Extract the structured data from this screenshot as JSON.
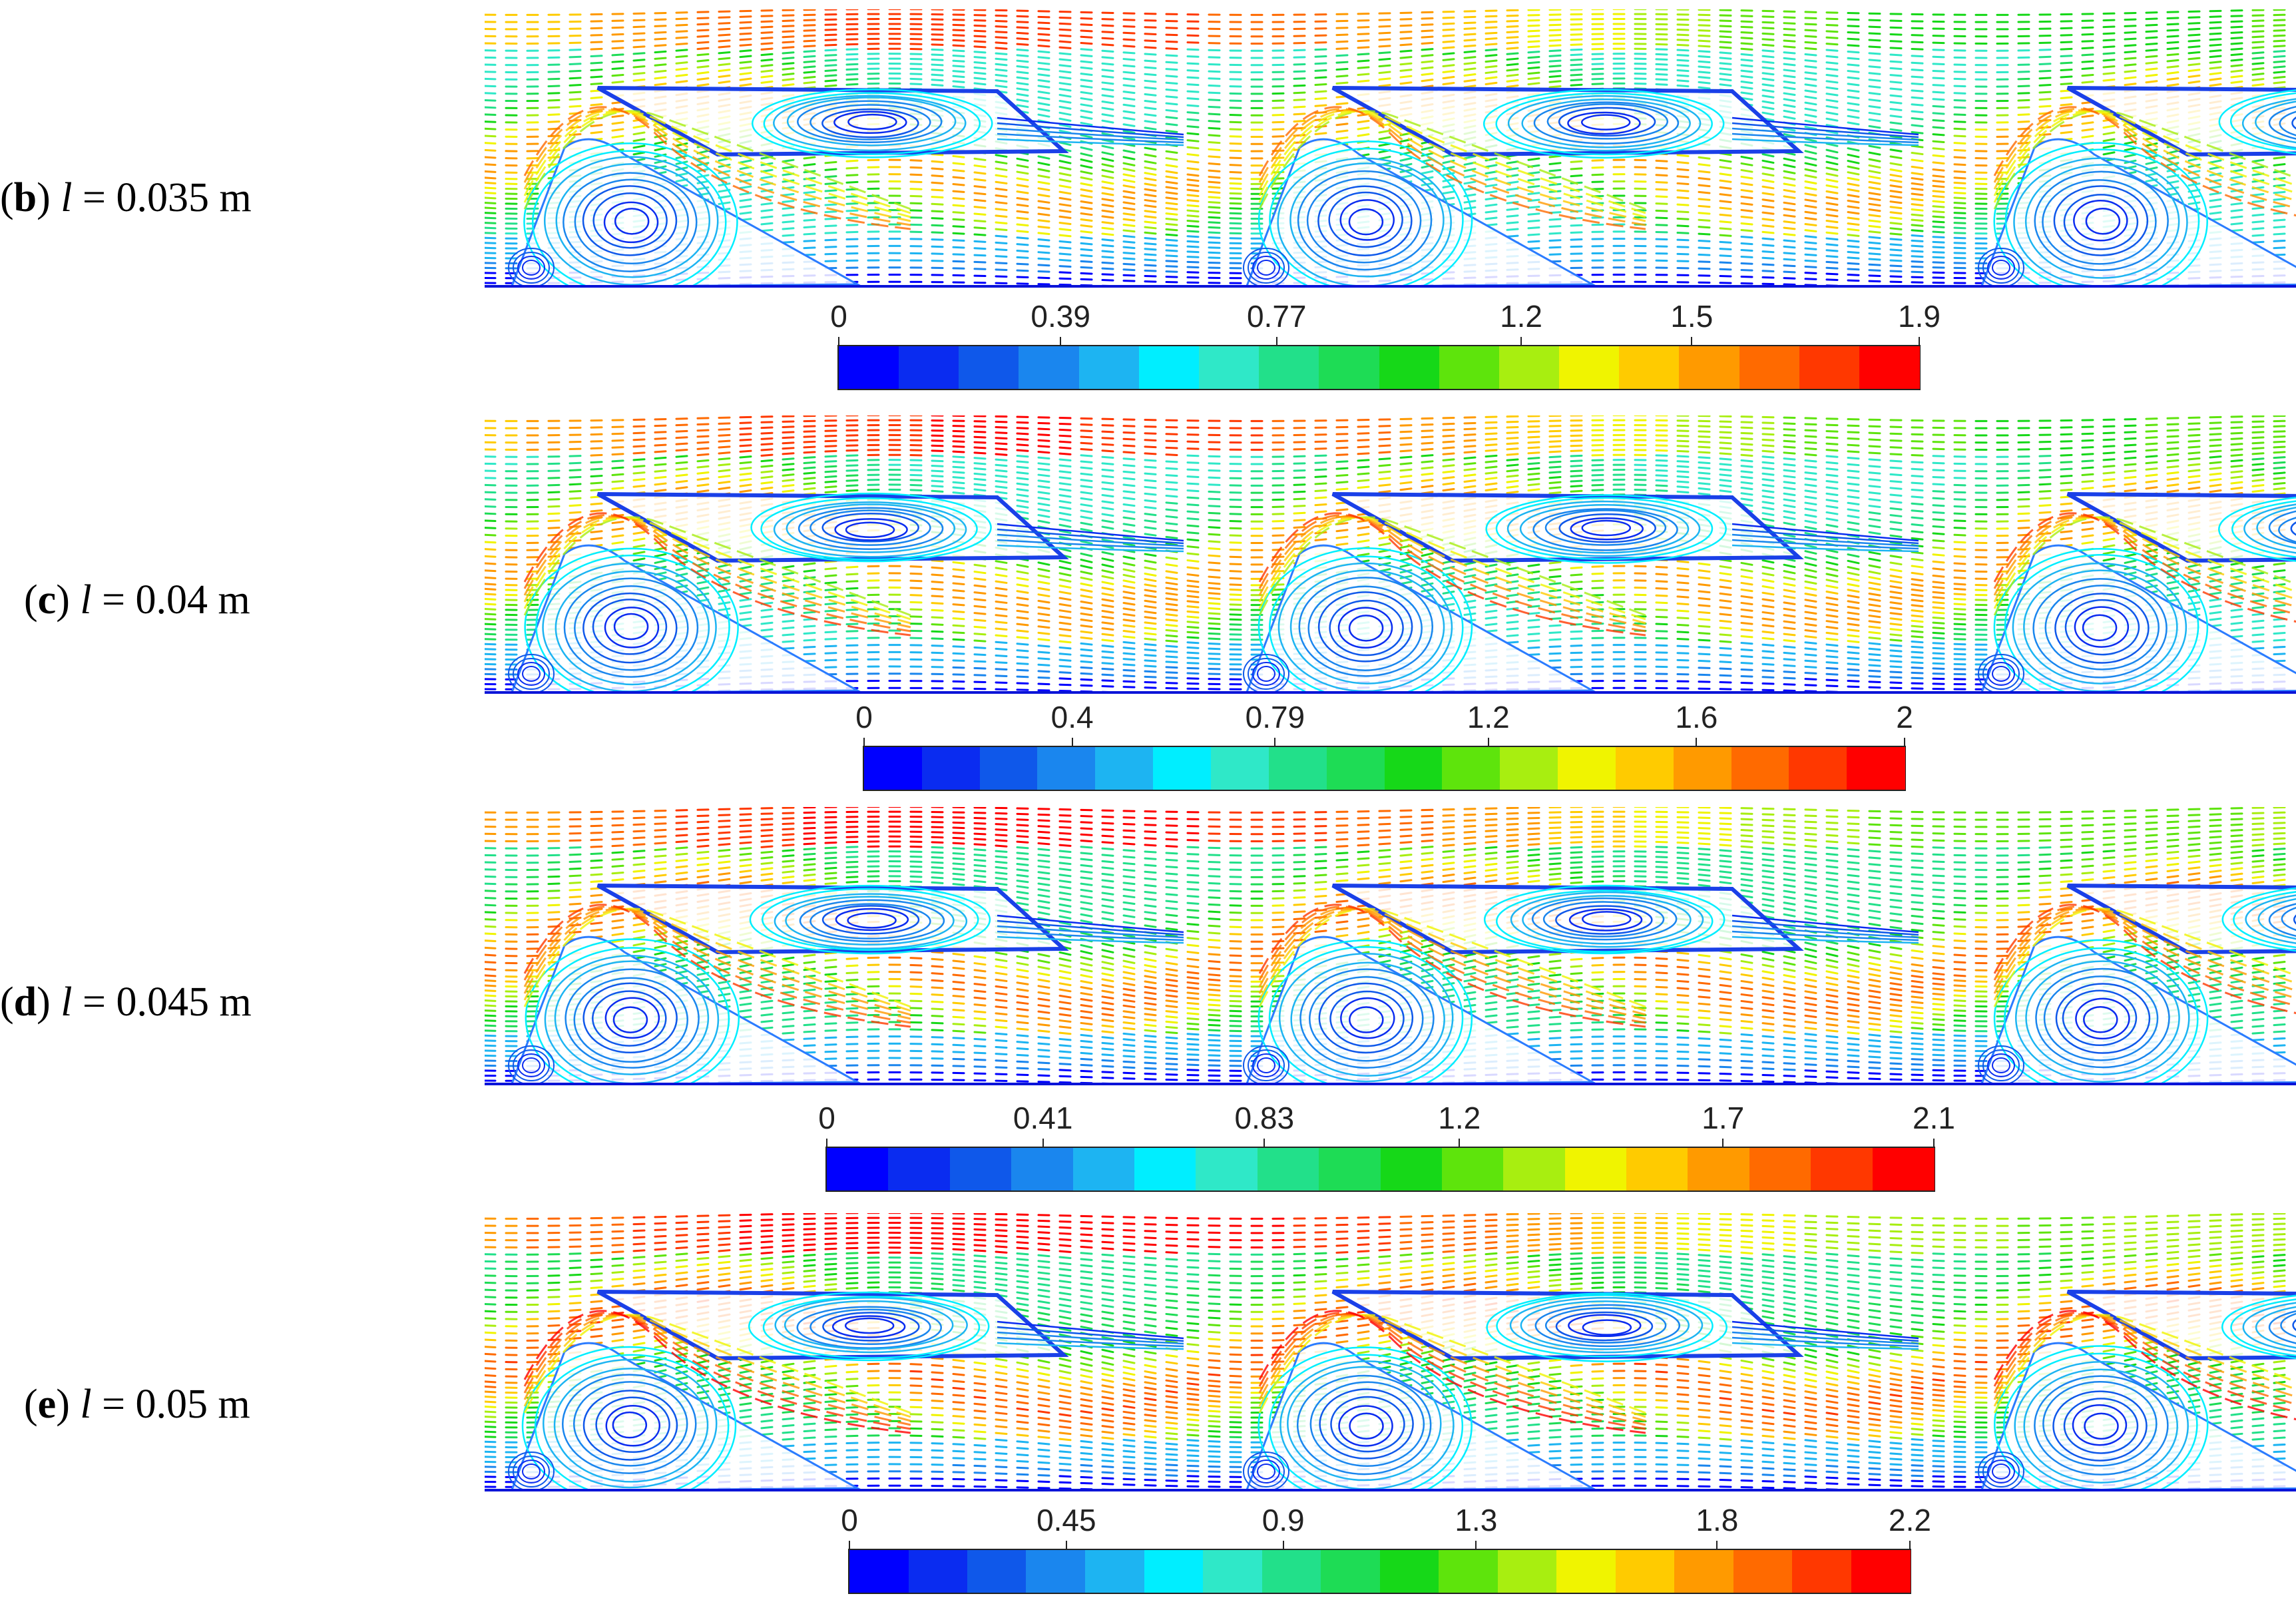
{
  "colormap": [
    "#0000ff",
    "#0a2cf0",
    "#0f58ea",
    "#1a86ee",
    "#1db4f2",
    "#00eeff",
    "#2fe8c8",
    "#22e08a",
    "#1edc55",
    "#16d818",
    "#5ee40c",
    "#a8ee10",
    "#f0f400",
    "#ffcb00",
    "#ff9a00",
    "#ff6a00",
    "#ff3800",
    "#ff0000"
  ],
  "panels": [
    {
      "letter": "b",
      "variable": "l",
      "value_text": " = 0.035 m",
      "colorbar": {
        "ticks": [
          "0",
          "0.39",
          "0.77",
          "1.2",
          "1.5",
          "1.9"
        ],
        "max": 1.9
      }
    },
    {
      "letter": "c",
      "variable": "l",
      "value_text": " = 0.04 m",
      "colorbar": {
        "ticks": [
          "0",
          "0.4",
          "0.79",
          "1.2",
          "1.6",
          "2"
        ],
        "max": 2.0
      }
    },
    {
      "letter": "d",
      "variable": "l",
      "value_text": " = 0.045 m",
      "colorbar": {
        "ticks": [
          "0",
          "0.41",
          "0.83",
          "1.2",
          "1.7",
          "2.1"
        ],
        "max": 2.1
      }
    },
    {
      "letter": "e",
      "variable": "l",
      "value_text": " = 0.05 m",
      "colorbar": {
        "ticks": [
          "0",
          "0.45",
          "0.9",
          "1.3",
          "1.8",
          "2.2"
        ],
        "max": 2.2
      }
    }
  ]
}
